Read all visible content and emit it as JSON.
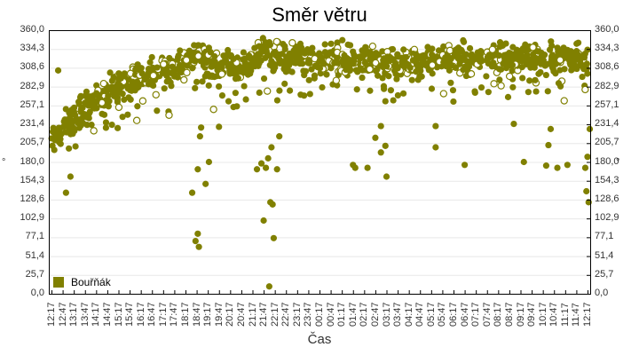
{
  "chart_data": {
    "type": "scatter",
    "title": "Směr větru",
    "xlabel": "Čas",
    "ylabel": "°",
    "ylabel_right": "°",
    "ylim": [
      0,
      360
    ],
    "yticks": [
      "0,0",
      "25,7",
      "51,4",
      "77,1",
      "102,9",
      "128,6",
      "154,3",
      "180,0",
      "205,7",
      "231,4",
      "257,1",
      "282,9",
      "308,6",
      "334,3",
      "360,0"
    ],
    "xticks": [
      "12:17",
      "12:47",
      "13:17",
      "13:47",
      "14:17",
      "14:47",
      "15:17",
      "15:47",
      "16:17",
      "16:47",
      "17:17",
      "17:47",
      "18:17",
      "18:47",
      "19:17",
      "19:47",
      "20:17",
      "20:47",
      "21:17",
      "21:47",
      "22:17",
      "22:47",
      "23:17",
      "23:47",
      "00:17",
      "00:47",
      "01:17",
      "01:47",
      "02:17",
      "02:47",
      "03:17",
      "03:47",
      "04:17",
      "04:47",
      "05:17",
      "05:47",
      "06:17",
      "06:47",
      "07:17",
      "07:47",
      "08:17",
      "08:47",
      "09:17",
      "09:47",
      "10:17",
      "10:47",
      "11:17",
      "11:47",
      "12:17"
    ],
    "grid": true,
    "legend_position": "bottom-left inside",
    "series": [
      {
        "name": "Bouřňák",
        "color": "#808000",
        "trend": {
          "x_index": [
            0,
            1,
            2,
            3,
            4,
            5,
            6,
            7,
            8,
            9,
            10,
            11,
            12,
            13,
            14,
            15,
            16,
            17,
            18,
            19,
            20,
            21,
            22,
            23,
            24,
            25,
            26,
            27,
            28,
            29,
            30,
            31,
            32,
            33,
            34,
            35,
            36,
            37,
            38,
            39,
            40,
            41,
            42,
            43,
            44,
            45,
            46,
            47,
            48
          ],
          "median_y": [
            205,
            225,
            240,
            255,
            265,
            275,
            285,
            290,
            297,
            300,
            303,
            305,
            320,
            325,
            315,
            312,
            310,
            305,
            320,
            330,
            325,
            320,
            322,
            322,
            320,
            322,
            320,
            318,
            320,
            316,
            314,
            316,
            316,
            318,
            322,
            325,
            324,
            322,
            322,
            325,
            320,
            322,
            325,
            328,
            322,
            322,
            320,
            318,
            315
          ]
        },
        "outliers": [
          {
            "x": 0.6,
            "y": 305
          },
          {
            "x": 1.3,
            "y": 138
          },
          {
            "x": 1.7,
            "y": 160
          },
          {
            "x": 12.6,
            "y": 138
          },
          {
            "x": 12.9,
            "y": 72
          },
          {
            "x": 13.1,
            "y": 82
          },
          {
            "x": 13.2,
            "y": 64
          },
          {
            "x": 13.1,
            "y": 170
          },
          {
            "x": 13.3,
            "y": 215
          },
          {
            "x": 13.4,
            "y": 227
          },
          {
            "x": 13.8,
            "y": 150
          },
          {
            "x": 14.1,
            "y": 180
          },
          {
            "x": 15.0,
            "y": 228
          },
          {
            "x": 16.3,
            "y": 255
          },
          {
            "x": 16.6,
            "y": 256
          },
          {
            "x": 18.4,
            "y": 170
          },
          {
            "x": 18.8,
            "y": 178
          },
          {
            "x": 19.0,
            "y": 100
          },
          {
            "x": 19.2,
            "y": 172
          },
          {
            "x": 19.4,
            "y": 185
          },
          {
            "x": 19.6,
            "y": 125
          },
          {
            "x": 19.8,
            "y": 122
          },
          {
            "x": 19.9,
            "y": 76
          },
          {
            "x": 19.5,
            "y": 10
          },
          {
            "x": 20.2,
            "y": 170
          },
          {
            "x": 20.4,
            "y": 215
          },
          {
            "x": 19.7,
            "y": 200
          },
          {
            "x": 27.0,
            "y": 176
          },
          {
            "x": 27.2,
            "y": 172
          },
          {
            "x": 28.3,
            "y": 172
          },
          {
            "x": 29.0,
            "y": 213
          },
          {
            "x": 29.5,
            "y": 229
          },
          {
            "x": 29.5,
            "y": 193
          },
          {
            "x": 29.9,
            "y": 202
          },
          {
            "x": 30.0,
            "y": 160
          },
          {
            "x": 34.4,
            "y": 200
          },
          {
            "x": 34.4,
            "y": 229
          },
          {
            "x": 37.0,
            "y": 176
          },
          {
            "x": 41.4,
            "y": 232
          },
          {
            "x": 42.3,
            "y": 180
          },
          {
            "x": 44.3,
            "y": 175
          },
          {
            "x": 44.5,
            "y": 203
          },
          {
            "x": 44.7,
            "y": 225
          },
          {
            "x": 45.3,
            "y": 172
          },
          {
            "x": 46.2,
            "y": 176
          },
          {
            "x": 47.8,
            "y": 172
          },
          {
            "x": 47.9,
            "y": 140
          },
          {
            "x": 48.0,
            "y": 187
          },
          {
            "x": 48.1,
            "y": 125
          },
          {
            "x": 48.2,
            "y": 225
          }
        ]
      }
    ]
  },
  "legend": {
    "label": "Bouřňák",
    "color": "#808000"
  }
}
